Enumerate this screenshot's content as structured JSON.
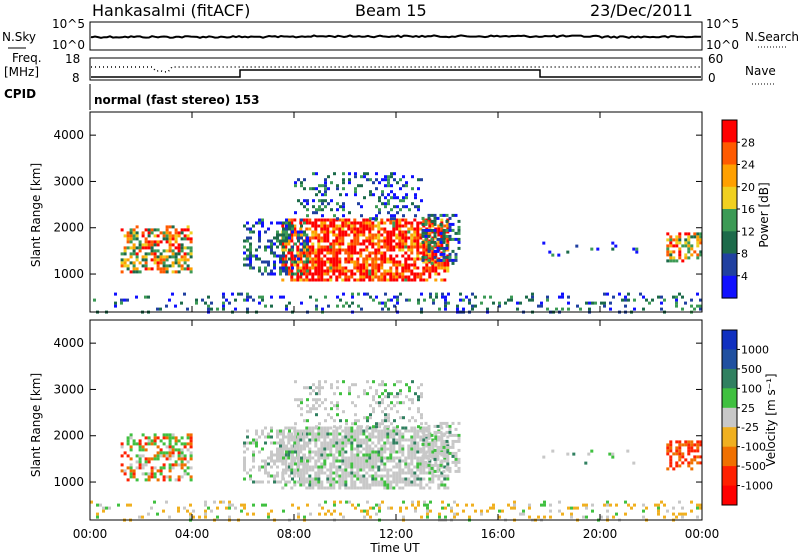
{
  "header": {
    "station": "Hankasalmi (fitACF)",
    "beam": "Beam 15",
    "date": "23/Dec/2011"
  },
  "noise_panel": {
    "left_label": "N.Sky",
    "right_label": "N.Search",
    "ytick_top": "10^5",
    "ytick_bottom": "10^0"
  },
  "freq_panel": {
    "left_label_line1": "Freq.",
    "left_label_line2": "[MHz]",
    "right_label": "Nave",
    "left_top": "18",
    "left_bottom": "8",
    "right_top": "60",
    "right_bottom": "0"
  },
  "cpid": {
    "label": "CPID",
    "text": "normal (fast stereo) 153"
  },
  "power_colorbar": {
    "title": "Power [dB]",
    "ticks": [
      "28",
      "24",
      "20",
      "16",
      "12",
      "8",
      "4"
    ],
    "colors": [
      "#ff0000",
      "#ff5a00",
      "#ffa000",
      "#f0d020",
      "#3c9a55",
      "#1c6a4a",
      "#2040a0",
      "#1010ff"
    ]
  },
  "velocity_colorbar": {
    "title": "Velocity [m s⁻¹]",
    "ticks": [
      "1000",
      "500",
      "100",
      "25",
      "-25",
      "-100",
      "-500",
      "-1000"
    ],
    "colors": [
      "#1030c0",
      "#2050a0",
      "#308060",
      "#40c040",
      "#c8c8c8",
      "#f0b020",
      "#f07000",
      "#ff2000",
      "#ff0000"
    ]
  },
  "chart_data": [
    {
      "type": "heatmap",
      "title": "Power",
      "ylabel": "Slant Range [km]",
      "xlabel": "Time UT",
      "ylim": [
        180,
        4500
      ],
      "yticks": [
        "1000",
        "2000",
        "3000",
        "4000"
      ],
      "xticks": [
        "00:00",
        "04:00",
        "08:00",
        "12:00",
        "16:00",
        "20:00",
        "00:00"
      ],
      "colorbar": "Power [dB]"
    },
    {
      "type": "heatmap",
      "title": "Velocity",
      "ylabel": "Slant Range [km]",
      "xlabel": "Time UT",
      "ylim": [
        180,
        4500
      ],
      "yticks": [
        "1000",
        "2000",
        "3000",
        "4000"
      ],
      "xticks": [
        "00:00",
        "04:00",
        "08:00",
        "12:00",
        "16:00",
        "20:00",
        "00:00"
      ],
      "colorbar": "Velocity [m s⁻¹]"
    }
  ]
}
